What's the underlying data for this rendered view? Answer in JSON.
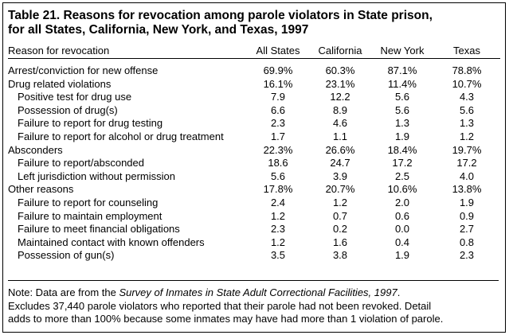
{
  "title": [
    "Table 21.  Reasons for revocation among parole violators in State prison,",
    "for all States, California, New York, and Texas, 1997"
  ],
  "headers": [
    "Reason for revocation",
    "All States",
    "California",
    "New York",
    "Texas"
  ],
  "rows": [
    {
      "label": "Arrest/conviction for new offense",
      "type": "group",
      "values": [
        "69.9%",
        "60.3%",
        "87.1%",
        "78.8%"
      ]
    },
    {
      "label": "Drug related violations",
      "type": "group",
      "values": [
        "16.1%",
        "23.1%",
        "11.4%",
        "10.7%"
      ]
    },
    {
      "label": "Positive test for drug use",
      "type": "sub",
      "values": [
        "7.9",
        "12.2",
        "5.6",
        "4.3"
      ]
    },
    {
      "label": "Possession of drug(s)",
      "type": "sub",
      "values": [
        "6.6",
        "8.9",
        "5.6",
        "5.6"
      ]
    },
    {
      "label": "Failure to report for drug testing",
      "type": "sub",
      "values": [
        "2.3",
        "4.6",
        "1.3",
        "1.3"
      ]
    },
    {
      "label": "Failure to report for alcohol or drug treatment",
      "type": "sub",
      "values": [
        "1.7",
        "1.1",
        "1.9",
        "1.2"
      ]
    },
    {
      "label": "Absconders",
      "type": "group",
      "values": [
        "22.3%",
        "26.6%",
        "18.4%",
        "19.7%"
      ]
    },
    {
      "label": "Failure to report/absconded",
      "type": "sub",
      "values": [
        "18.6",
        "24.7",
        "17.2",
        "17.2"
      ]
    },
    {
      "label": "Left jurisdiction without permission",
      "type": "sub",
      "values": [
        "5.6",
        "3.9",
        "2.5",
        "4.0"
      ]
    },
    {
      "label": "Other reasons",
      "type": "group",
      "values": [
        "17.8%",
        "20.7%",
        "10.6%",
        "13.8%"
      ]
    },
    {
      "label": "Failure to report for counseling",
      "type": "sub",
      "values": [
        "2.4",
        "1.2",
        "2.0",
        "1.9"
      ]
    },
    {
      "label": "Failure to maintain employment",
      "type": "sub",
      "values": [
        "1.2",
        "0.7",
        "0.6",
        "0.9"
      ]
    },
    {
      "label": "Failure to meet financial obligations",
      "type": "sub",
      "values": [
        "2.3",
        "0.2",
        "0.0",
        "2.7"
      ]
    },
    {
      "label": "Maintained contact with known offenders",
      "type": "sub",
      "values": [
        "1.2",
        "1.6",
        "0.4",
        "0.8"
      ]
    },
    {
      "label": "Possession of gun(s)",
      "type": "sub",
      "values": [
        "3.5",
        "3.8",
        "1.9",
        "2.3"
      ]
    }
  ],
  "note": {
    "prefix": "Note:  Data are from the ",
    "source": "Survey of Inmates in State Adult Correctional Facilities, 1997",
    "suffix": ".",
    "line2": "Excludes 37,440 parole violators who reported that their parole had not been revoked.  Detail",
    "line3": "adds to more than 100% because some inmates may have had more than 1 violation of parole."
  }
}
